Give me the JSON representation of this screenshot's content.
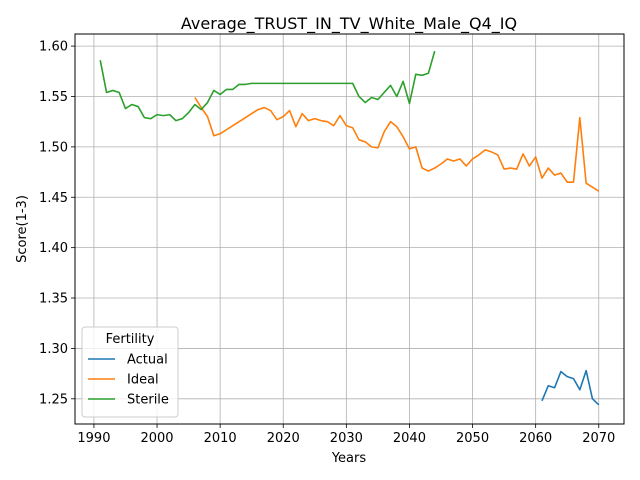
{
  "chart_data": {
    "type": "line",
    "title": "Average_TRUST_IN_TV_White_Male_Q4_IQ",
    "xlabel": "Years",
    "ylabel": "Score(1-3)",
    "xlim": [
      1987,
      2074
    ],
    "ylim": [
      1.225,
      1.612
    ],
    "xticks": [
      1990,
      2000,
      2010,
      2020,
      2030,
      2040,
      2050,
      2060,
      2070
    ],
    "yticks": [
      1.25,
      1.3,
      1.35,
      1.4,
      1.45,
      1.5,
      1.55,
      1.6
    ],
    "ytick_labels": [
      "1.25",
      "1.30",
      "1.35",
      "1.40",
      "1.45",
      "1.50",
      "1.55",
      "1.60"
    ],
    "grid": true,
    "legend": {
      "title": "Fertility",
      "placement": "lower-left"
    },
    "series": [
      {
        "name": "Actual",
        "color": "#1f77b4",
        "x": [
          2061,
          2062,
          2063,
          2064,
          2065,
          2066,
          2067,
          2068,
          2069,
          2070
        ],
        "y": [
          1.248,
          1.263,
          1.261,
          1.277,
          1.272,
          1.27,
          1.259,
          1.278,
          1.25,
          1.244
        ]
      },
      {
        "name": "Ideal",
        "color": "#ff7f0e",
        "x": [
          2006,
          2007,
          2008,
          2009,
          2010,
          2011,
          2012,
          2013,
          2014,
          2015,
          2016,
          2017,
          2018,
          2019,
          2020,
          2021,
          2022,
          2023,
          2024,
          2025,
          2026,
          2027,
          2028,
          2029,
          2030,
          2031,
          2032,
          2033,
          2034,
          2035,
          2036,
          2037,
          2038,
          2039,
          2040,
          2041,
          2042,
          2043,
          2044,
          2045,
          2046,
          2047,
          2048,
          2049,
          2050,
          2051,
          2052,
          2053,
          2054,
          2055,
          2056,
          2057,
          2058,
          2059,
          2060,
          2061,
          2062,
          2063,
          2064,
          2065,
          2066,
          2067,
          2068,
          2069,
          2070
        ],
        "y": [
          1.549,
          1.539,
          1.53,
          1.511,
          1.513,
          1.517,
          1.521,
          1.525,
          1.529,
          1.533,
          1.537,
          1.539,
          1.536,
          1.527,
          1.53,
          1.536,
          1.52,
          1.533,
          1.526,
          1.528,
          1.526,
          1.525,
          1.521,
          1.531,
          1.521,
          1.519,
          1.507,
          1.505,
          1.5,
          1.499,
          1.515,
          1.525,
          1.52,
          1.51,
          1.498,
          1.5,
          1.479,
          1.476,
          1.479,
          1.483,
          1.488,
          1.486,
          1.488,
          1.481,
          1.488,
          1.492,
          1.497,
          1.495,
          1.492,
          1.478,
          1.479,
          1.478,
          1.493,
          1.481,
          1.49,
          1.469,
          1.479,
          1.472,
          1.474,
          1.465,
          1.465,
          1.529,
          1.464,
          1.46,
          1.456
        ]
      },
      {
        "name": "Sterile",
        "color": "#2ca02c",
        "x": [
          1991,
          1992,
          1993,
          1994,
          1995,
          1996,
          1997,
          1998,
          1999,
          2000,
          2001,
          2002,
          2003,
          2004,
          2005,
          2006,
          2007,
          2008,
          2009,
          2010,
          2011,
          2012,
          2013,
          2014,
          2015,
          2016,
          2017,
          2018,
          2019,
          2020,
          2021,
          2022,
          2023,
          2024,
          2025,
          2026,
          2027,
          2028,
          2029,
          2030,
          2031,
          2032,
          2033,
          2034,
          2035,
          2036,
          2037,
          2038,
          2039,
          2040,
          2041,
          2042,
          2043,
          2044
        ],
        "y": [
          1.586,
          1.554,
          1.556,
          1.554,
          1.538,
          1.542,
          1.54,
          1.529,
          1.528,
          1.532,
          1.531,
          1.532,
          1.526,
          1.528,
          1.534,
          1.542,
          1.537,
          1.544,
          1.556,
          1.552,
          1.557,
          1.557,
          1.562,
          1.562,
          1.563,
          1.563,
          1.563,
          1.563,
          1.563,
          1.563,
          1.563,
          1.563,
          1.563,
          1.563,
          1.563,
          1.563,
          1.563,
          1.563,
          1.563,
          1.563,
          1.563,
          1.55,
          1.544,
          1.549,
          1.547,
          1.554,
          1.561,
          1.55,
          1.565,
          1.543,
          1.572,
          1.571,
          1.573,
          1.595
        ]
      }
    ]
  }
}
